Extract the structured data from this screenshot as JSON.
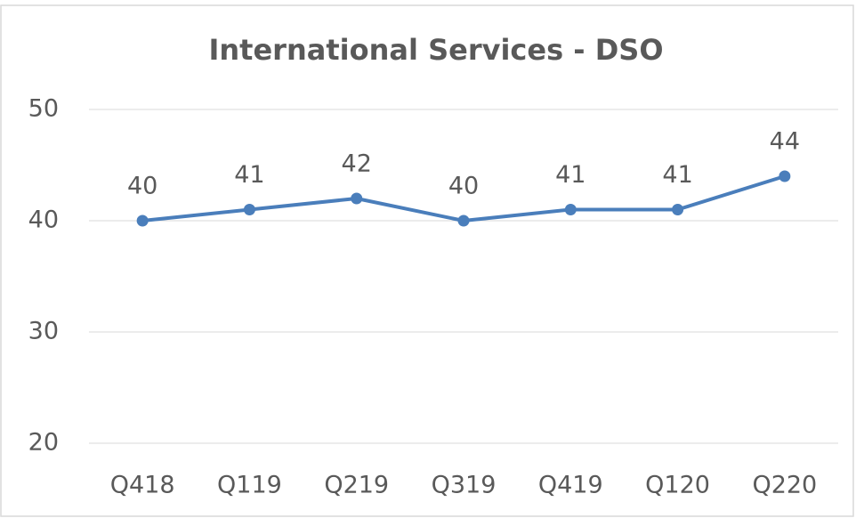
{
  "chart_data": {
    "type": "line",
    "title": "International Services - DSO",
    "categories": [
      "Q418",
      "Q119",
      "Q219",
      "Q319",
      "Q419",
      "Q120",
      "Q220"
    ],
    "values": [
      40,
      41,
      42,
      40,
      41,
      41,
      44
    ],
    "color": "#4a7ebb",
    "ylim": [
      20,
      50
    ],
    "yticks": [
      20,
      30,
      40,
      50
    ],
    "grid": true
  }
}
